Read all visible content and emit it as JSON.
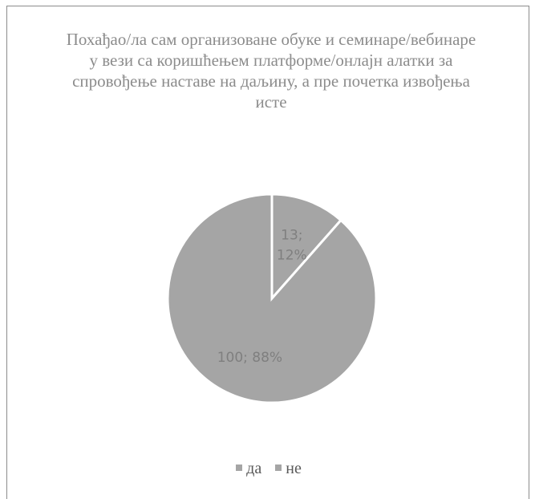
{
  "chart_data": {
    "type": "pie",
    "title": "Похађао/ла сам организоване обуке и семинаре/вебинаре у вези са коришћењем платформе/онлајн алатки за спровођење наставе на даљину, а пре почетка извођења исте",
    "categories": [
      "да",
      "не"
    ],
    "values": [
      13,
      100
    ],
    "percentages": [
      12,
      88
    ],
    "data_labels": [
      "13; 12%",
      "100; 88%"
    ],
    "colors": [
      "#a5a5a5",
      "#a5a5a5"
    ],
    "slice_border_color": "#ffffff",
    "legend_position": "bottom"
  }
}
